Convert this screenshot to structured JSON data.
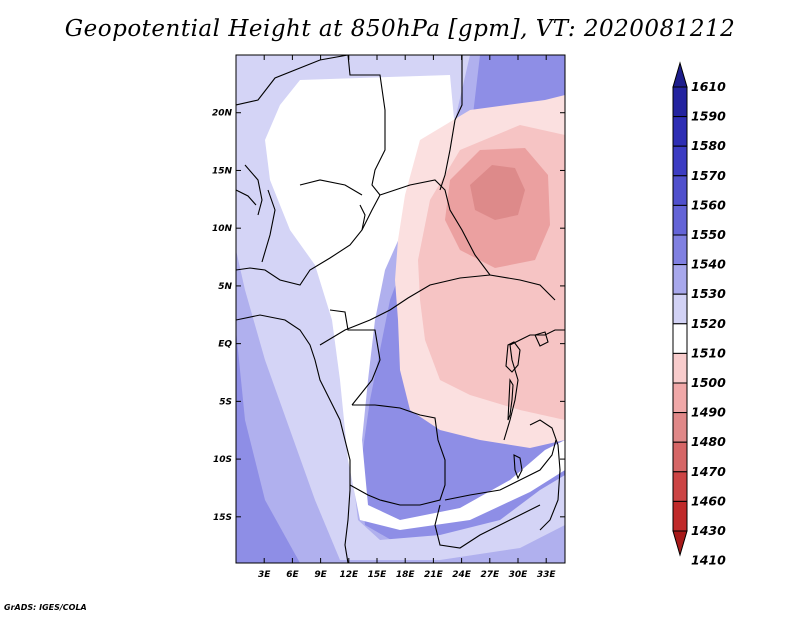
{
  "chart_data": {
    "type": "heatmap",
    "title": "Geopotential Height at 850hPa [gpm], VT: 2020081212",
    "variable": "Geopotential Height at 850hPa",
    "units": "gpm",
    "valid_time": "2020081212",
    "xlabel": "",
    "ylabel": "",
    "x_range": [
      0,
      35
    ],
    "y_range": [
      -19,
      25
    ],
    "x_ticks": [
      3,
      6,
      9,
      12,
      15,
      18,
      21,
      24,
      27,
      30,
      33
    ],
    "x_tick_labels": [
      "3E",
      "6E",
      "9E",
      "12E",
      "15E",
      "18E",
      "21E",
      "24E",
      "27E",
      "30E",
      "33E"
    ],
    "y_ticks": [
      20,
      15,
      10,
      5,
      0,
      -5,
      -10,
      -15
    ],
    "y_tick_labels": [
      "20N",
      "15N",
      "10N",
      "5N",
      "EQ",
      "5S",
      "10S",
      "15S"
    ],
    "colorbar": {
      "labels": [
        "1610",
        "1590",
        "1580",
        "1570",
        "1560",
        "1550",
        "1540",
        "1530",
        "1520",
        "1510",
        "1500",
        "1490",
        "1480",
        "1470",
        "1460",
        "1430",
        "1410"
      ],
      "levels": [
        1610,
        1590,
        1580,
        1570,
        1560,
        1550,
        1540,
        1530,
        1520,
        1510,
        1500,
        1490,
        1480,
        1470,
        1460,
        1430,
        1410
      ],
      "colors": [
        "#1e1e8c",
        "#23239f",
        "#2e2eb4",
        "#3c3cc3",
        "#5050cd",
        "#6464d7",
        "#8080e1",
        "#a8a8ec",
        "#d2d2f5",
        "#ffffff",
        "#f8cccc",
        "#f0a8a8",
        "#e08888",
        "#d66666",
        "#cc4444",
        "#c02a2a",
        "#a81a1a"
      ]
    },
    "field_regions": [
      {
        "value": 1545,
        "color": "#8e8ee6"
      },
      {
        "value": 1535,
        "color": "#b0b0ee"
      },
      {
        "value": 1525,
        "color": "#d4d4f6"
      },
      {
        "value": 1515,
        "color": "#ffffff"
      },
      {
        "value": 1505,
        "color": "#fbe0e0"
      },
      {
        "value": 1495,
        "color": "#f6c4c4"
      },
      {
        "value": 1485,
        "color": "#eba0a0"
      },
      {
        "value": 1478,
        "color": "#dd8a8a"
      }
    ]
  },
  "credit": "GrADS: IGES/COLA"
}
